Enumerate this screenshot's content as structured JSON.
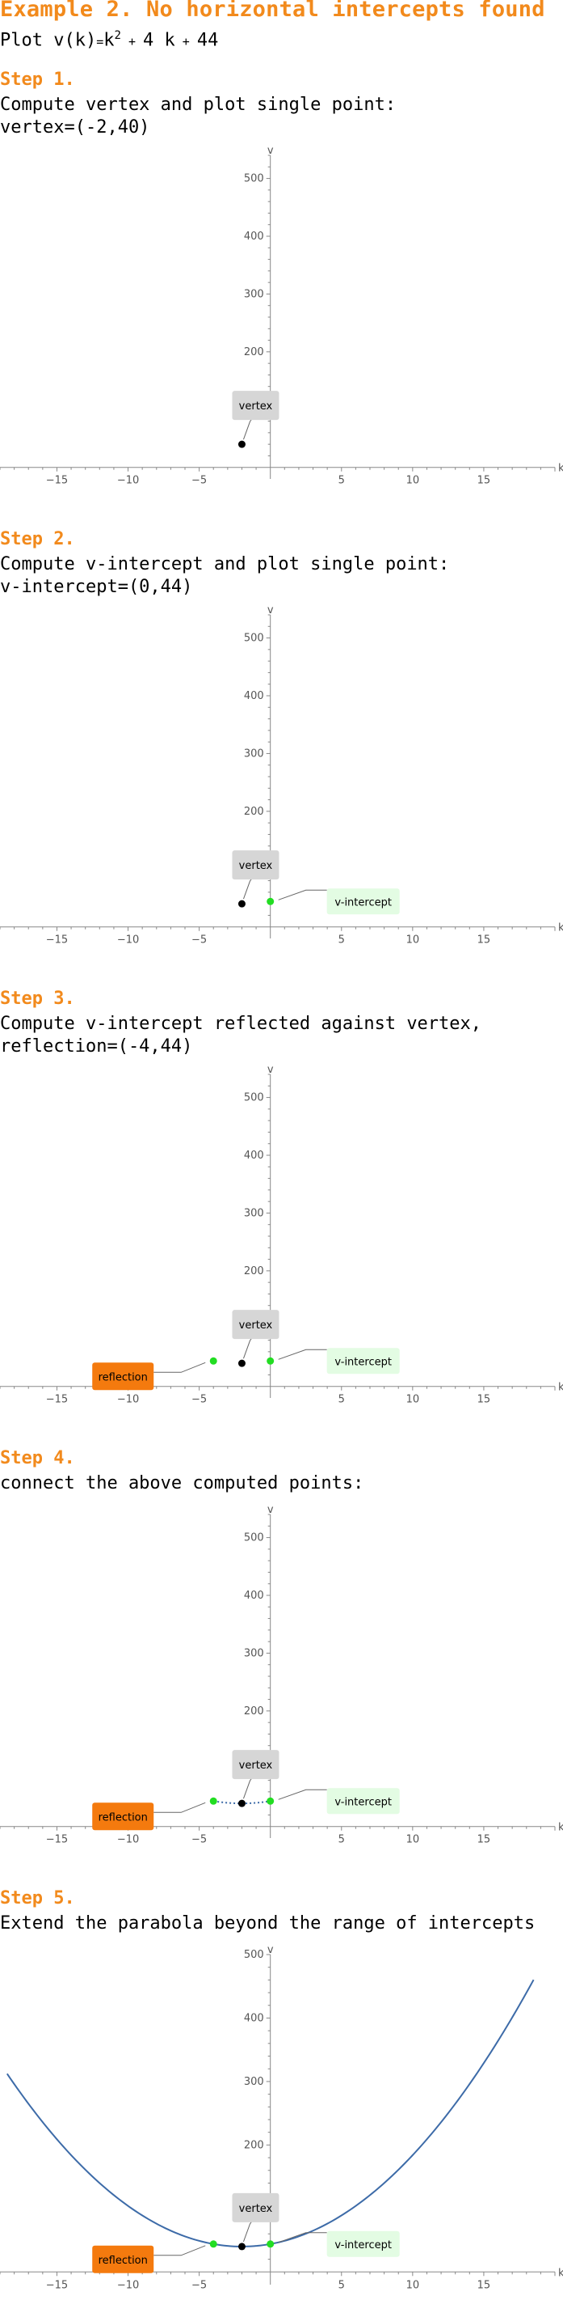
{
  "title": "Example 2. No horizontal intercepts found",
  "plot_prefix": "Plot ",
  "function_lhs": "v(k)",
  "function_rhs_base": "k",
  "function_rhs_exp": "2",
  "function_rhs_rest": "4 k",
  "function_rhs_const": "44",
  "steps": [
    {
      "heading": "Step 1.",
      "lines": [
        "Compute vertex and plot single point:",
        "vertex=(-2,40)"
      ]
    },
    {
      "heading": "Step 2.",
      "lines": [
        "Compute v-intercept and plot single point:",
        "v-intercept=(0,44)"
      ]
    },
    {
      "heading": "Step 3.",
      "lines": [
        "Compute v-intercept reflected against vertex,",
        "reflection=(-4,44)"
      ]
    },
    {
      "heading": "Step 4.",
      "lines": [
        "connect the above computed points:"
      ]
    },
    {
      "heading": "Step 5.",
      "lines": [
        "Extend the parabola beyond the range of intercepts"
      ]
    }
  ],
  "chart_data": [
    {
      "type": "scatter",
      "step": 1,
      "xlabel": "k",
      "ylabel": "v",
      "xlim": [
        -19,
        20
      ],
      "ylim": [
        -20,
        540
      ],
      "x_ticks": [
        -15,
        -10,
        -5,
        5,
        10,
        15
      ],
      "y_ticks": [
        100,
        200,
        300,
        400,
        500
      ],
      "points": [
        {
          "x": -2,
          "y": 40,
          "label": "vertex",
          "color": "#000000"
        }
      ],
      "curve": null
    },
    {
      "type": "scatter",
      "step": 2,
      "xlabel": "k",
      "ylabel": "v",
      "xlim": [
        -19,
        20
      ],
      "ylim": [
        -20,
        540
      ],
      "x_ticks": [
        -15,
        -10,
        -5,
        5,
        10,
        15
      ],
      "y_ticks": [
        100,
        200,
        300,
        400,
        500
      ],
      "points": [
        {
          "x": -2,
          "y": 40,
          "label": "vertex",
          "color": "#000000"
        },
        {
          "x": 0,
          "y": 44,
          "label": "v-intercept",
          "color": "#22dd22"
        }
      ],
      "curve": null
    },
    {
      "type": "scatter",
      "step": 3,
      "xlabel": "k",
      "ylabel": "v",
      "xlim": [
        -19,
        20
      ],
      "ylim": [
        -20,
        540
      ],
      "x_ticks": [
        -15,
        -10,
        -5,
        5,
        10,
        15
      ],
      "y_ticks": [
        100,
        200,
        300,
        400,
        500
      ],
      "points": [
        {
          "x": -2,
          "y": 40,
          "label": "vertex",
          "color": "#000000"
        },
        {
          "x": 0,
          "y": 44,
          "label": "v-intercept",
          "color": "#22dd22"
        },
        {
          "x": -4,
          "y": 44,
          "label": "reflection",
          "color": "#22dd22"
        }
      ],
      "curve": null
    },
    {
      "type": "line",
      "step": 4,
      "xlabel": "k",
      "ylabel": "v",
      "xlim": [
        -19,
        20
      ],
      "ylim": [
        -20,
        540
      ],
      "x_ticks": [
        -15,
        -10,
        -5,
        5,
        10,
        15
      ],
      "y_ticks": [
        100,
        200,
        300,
        400,
        500
      ],
      "points": [
        {
          "x": -2,
          "y": 40,
          "label": "vertex",
          "color": "#000000"
        },
        {
          "x": 0,
          "y": 44,
          "label": "v-intercept",
          "color": "#22dd22"
        },
        {
          "x": -4,
          "y": 44,
          "label": "reflection",
          "color": "#22dd22"
        }
      ],
      "curve": {
        "a": 1,
        "b": 4,
        "c": 44,
        "from": -4,
        "to": 0,
        "style": "dashed",
        "color": "#3d6ba8"
      }
    },
    {
      "type": "line",
      "step": 5,
      "xlabel": "k",
      "ylabel": "v",
      "xlim": [
        -19,
        20
      ],
      "ylim": [
        -20,
        500
      ],
      "x_ticks": [
        -15,
        -10,
        -5,
        5,
        10,
        15
      ],
      "y_ticks": [
        100,
        200,
        300,
        400,
        500
      ],
      "points": [
        {
          "x": -2,
          "y": 40,
          "label": "vertex",
          "color": "#000000"
        },
        {
          "x": 0,
          "y": 44,
          "label": "v-intercept",
          "color": "#22dd22"
        },
        {
          "x": -4,
          "y": 44,
          "label": "reflection",
          "color": "#22dd22"
        }
      ],
      "curve": {
        "a": 1,
        "b": 4,
        "c": 44,
        "from": -18.5,
        "to": 18.5,
        "style": "solid",
        "color": "#3d6ba8"
      }
    }
  ],
  "label_colors": {
    "vertex_bg": "#d6d6d6",
    "intercept_bg": "#e3fce3",
    "reflection_bg": "#f47a0e"
  }
}
